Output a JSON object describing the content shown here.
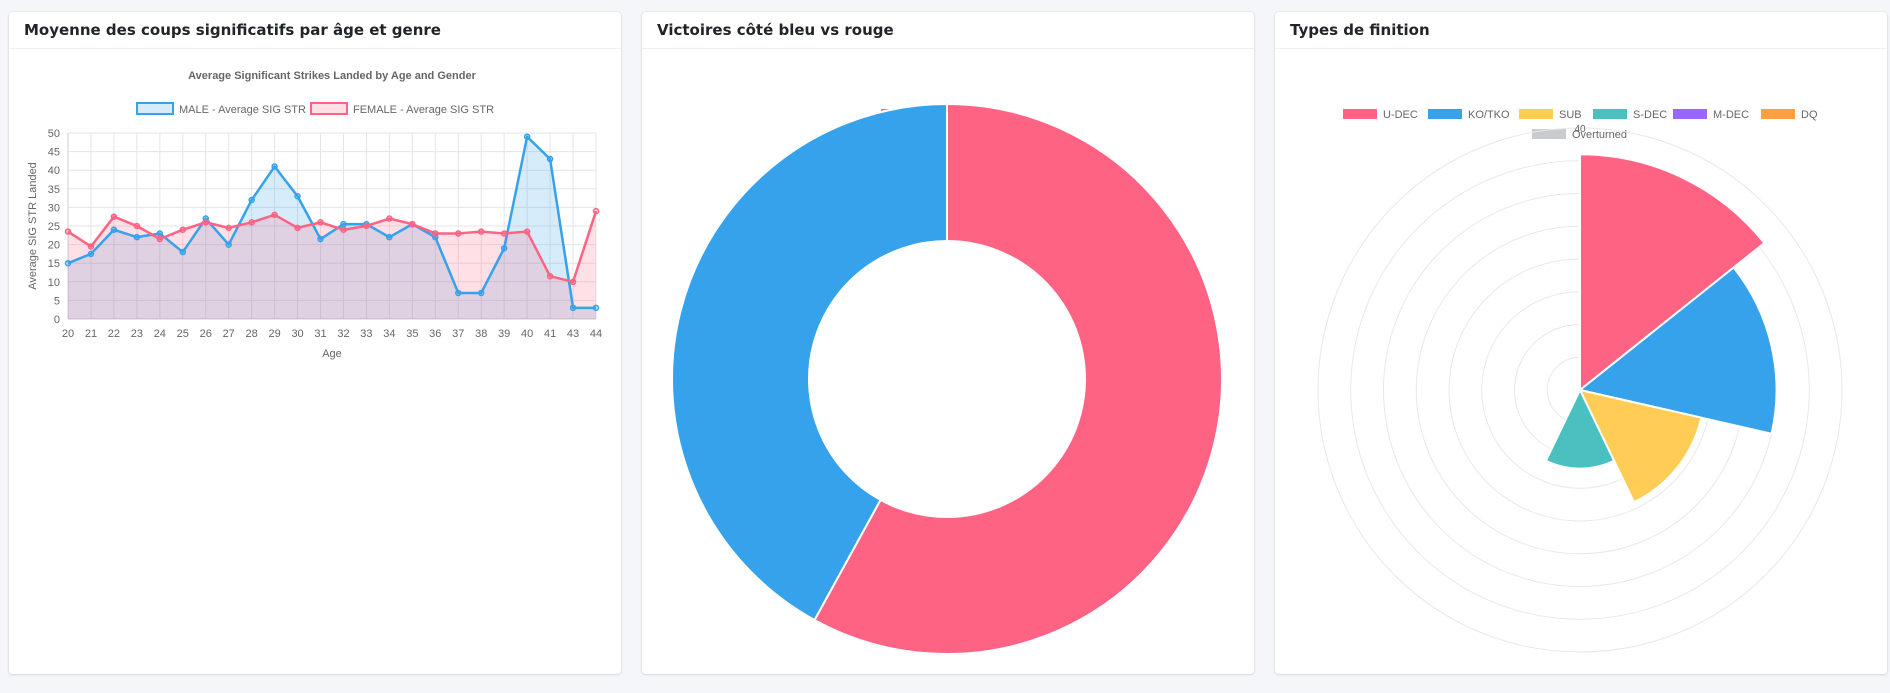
{
  "cards": [
    {
      "title": "Moyenne des coups significatifs par âge et genre"
    },
    {
      "title": "Victoires côté bleu vs rouge"
    },
    {
      "title": "Types de finition"
    }
  ],
  "colors": {
    "male": "#36a2eb",
    "female": "#ff6384",
    "red": "#ff6384",
    "blue": "#36a2eb",
    "u_dec": "#ff6384",
    "ko_tko": "#36a2eb",
    "sub": "#ffcd56",
    "s_dec": "#4bc0c0",
    "m_dec": "#9966ff",
    "dq": "#ff9f40",
    "overturned": "#c9cbcf"
  },
  "chart_data": [
    {
      "type": "line",
      "title": "Average Significant Strikes Landed by Age and Gender",
      "xlabel": "Age",
      "ylabel": "Average SIG STR Landed",
      "ylim": [
        0,
        50
      ],
      "yticks": [
        "0",
        "5",
        "10",
        "15",
        "20",
        "25",
        "30",
        "35",
        "40",
        "45",
        "50"
      ],
      "categories": [
        "20",
        "21",
        "22",
        "23",
        "24",
        "25",
        "26",
        "27",
        "28",
        "29",
        "30",
        "31",
        "32",
        "33",
        "34",
        "35",
        "36",
        "37",
        "38",
        "39",
        "40",
        "41",
        "43",
        "44"
      ],
      "legend_position": "top",
      "grid": true,
      "series": [
        {
          "name": "MALE - Average SIG STR",
          "values": [
            15,
            17.5,
            24,
            22,
            23,
            18,
            27,
            20,
            32,
            41,
            33,
            21.5,
            25.5,
            25.5,
            22,
            25.5,
            22,
            7,
            7,
            19,
            49,
            43,
            3,
            3
          ]
        },
        {
          "name": "FEMALE - Average SIG STR",
          "values": [
            23.5,
            19.5,
            27.5,
            25,
            21.5,
            24,
            26,
            24.5,
            26,
            28,
            24.5,
            26,
            24,
            25,
            27,
            25.5,
            23,
            23,
            23.5,
            23,
            23.5,
            11.5,
            10,
            29
          ]
        }
      ]
    },
    {
      "type": "pie",
      "legend_position": "top",
      "categories": [
        "Red",
        "Blue"
      ],
      "values": [
        58,
        42
      ]
    },
    {
      "type": "polar_area",
      "legend_position": "top",
      "rmax": 40,
      "ticks": [
        "40"
      ],
      "categories": [
        "U-DEC",
        "KO/TKO",
        "SUB",
        "S-DEC",
        "M-DEC",
        "DQ",
        "Overturned"
      ],
      "values": [
        36,
        30,
        19,
        12,
        0,
        0,
        0
      ]
    }
  ]
}
